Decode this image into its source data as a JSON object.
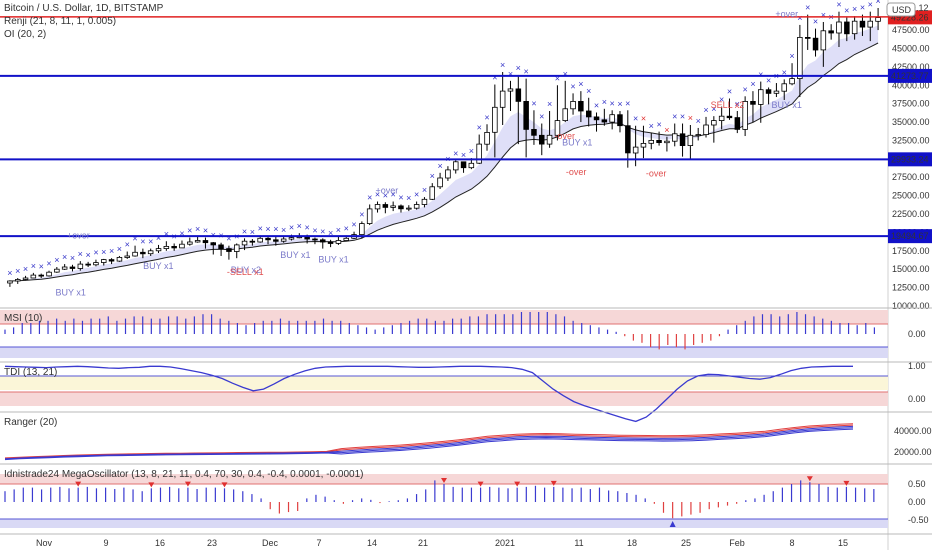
{
  "header": {
    "title": "Bitcoin / U.S. Dollar, 1D, BITSTAMP",
    "indicators": [
      "Renji (21, 8, 11, 1, 0.005)",
      "OI (20, 2)"
    ],
    "currency_button": "USD"
  },
  "chart_data": [
    {
      "id": "price",
      "type": "candlestick",
      "ylim": [
        10000,
        50500
      ],
      "y_ticks": [
        "47500.00",
        "45000.00",
        "42500.00",
        "40000.00",
        "37500.00",
        "35000.00",
        "32500.00",
        "30000.00",
        "27500.00",
        "25000.00",
        "22500.00",
        "20000.00",
        "17500.00",
        "15000.00",
        "12500.00",
        "10000.00"
      ],
      "x_ticks": [
        "Nov",
        "9",
        "16",
        "23",
        "Dec",
        "7",
        "14",
        "21",
        "2021",
        "11",
        "18",
        "25",
        "Feb",
        "8",
        "15"
      ],
      "candles_close": [
        13400,
        13600,
        13800,
        14200,
        14100,
        14600,
        15000,
        15300,
        15100,
        15700,
        15600,
        15900,
        16300,
        16100,
        16600,
        16800,
        17300,
        17100,
        17500,
        17800,
        18100,
        17900,
        18400,
        18700,
        18900,
        18600,
        18300,
        17800,
        17400,
        18300,
        18800,
        18700,
        19200,
        19000,
        18800,
        19100,
        19300,
        19400,
        19100,
        19000,
        18700,
        18500,
        18900,
        19200,
        19700,
        21200,
        23200,
        23800,
        23400,
        23600,
        23200,
        23300,
        23800,
        24500,
        26200,
        27400,
        28500,
        29600,
        28800,
        29400,
        32000,
        33600,
        37000,
        39200,
        39500,
        37800,
        34000,
        33200,
        32000,
        33200,
        35200,
        36800,
        37800,
        36500,
        35700,
        35300,
        35000,
        36000,
        34500,
        30800,
        31600,
        32100,
        32500,
        32200,
        32400,
        33400,
        31800,
        33200,
        33300,
        34600,
        35200,
        35800,
        35600,
        34000,
        37800,
        37400,
        39400,
        38900,
        39200,
        40200,
        40900,
        46500,
        46400,
        44800,
        47400,
        47100,
        48600,
        47000,
        48700,
        47900,
        48700,
        49200
      ],
      "wicks": [
        [
          12600,
          13500
        ],
        [
          13000,
          13800
        ],
        [
          13500,
          14100
        ],
        [
          13800,
          14500
        ],
        [
          13800,
          14400
        ],
        [
          14000,
          14800
        ],
        [
          14500,
          15300
        ],
        [
          14900,
          15700
        ],
        [
          14700,
          15600
        ],
        [
          14800,
          16100
        ],
        [
          15300,
          16000
        ],
        [
          15400,
          16300
        ],
        [
          15500,
          16400
        ],
        [
          15700,
          16500
        ],
        [
          16000,
          16800
        ],
        [
          16400,
          17400
        ],
        [
          16700,
          18200
        ],
        [
          16500,
          17800
        ],
        [
          16800,
          17800
        ],
        [
          17200,
          18300
        ],
        [
          17500,
          18800
        ],
        [
          17500,
          18500
        ],
        [
          18000,
          18900
        ],
        [
          18200,
          19300
        ],
        [
          18600,
          19500
        ],
        [
          17800,
          19300
        ],
        [
          17000,
          18700
        ],
        [
          16800,
          18600
        ],
        [
          16300,
          18200
        ],
        [
          16500,
          18500
        ],
        [
          17600,
          19200
        ],
        [
          18200,
          19100
        ],
        [
          18600,
          19600
        ],
        [
          18400,
          19500
        ],
        [
          18200,
          19500
        ],
        [
          18600,
          19400
        ],
        [
          18900,
          19700
        ],
        [
          19200,
          19900
        ],
        [
          18500,
          19700
        ],
        [
          18400,
          19300
        ],
        [
          17800,
          19200
        ],
        [
          18000,
          19000
        ],
        [
          18300,
          19400
        ],
        [
          18900,
          19600
        ],
        [
          19100,
          20100
        ],
        [
          19200,
          21500
        ],
        [
          21000,
          23800
        ],
        [
          22700,
          24200
        ],
        [
          22600,
          24100
        ],
        [
          22900,
          24200
        ],
        [
          22700,
          23800
        ],
        [
          22900,
          23700
        ],
        [
          23100,
          24200
        ],
        [
          23400,
          24800
        ],
        [
          24400,
          26700
        ],
        [
          25900,
          28100
        ],
        [
          27000,
          29000
        ],
        [
          28000,
          29800
        ],
        [
          28100,
          29600
        ],
        [
          28600,
          30100
        ],
        [
          29300,
          33300
        ],
        [
          31100,
          34700
        ],
        [
          30200,
          40100
        ],
        [
          34600,
          41800
        ],
        [
          36500,
          40600
        ],
        [
          32000,
          41400
        ],
        [
          30200,
          40900
        ],
        [
          31900,
          36600
        ],
        [
          30500,
          34800
        ],
        [
          31500,
          36500
        ],
        [
          32500,
          40000
        ],
        [
          35000,
          40600
        ],
        [
          36000,
          38900
        ],
        [
          35000,
          39200
        ],
        [
          34400,
          38300
        ],
        [
          33700,
          36300
        ],
        [
          34500,
          36800
        ],
        [
          34000,
          36600
        ],
        [
          33600,
          36500
        ],
        [
          28800,
          36600
        ],
        [
          29000,
          34500
        ],
        [
          30100,
          34500
        ],
        [
          31300,
          33500
        ],
        [
          31800,
          33700
        ],
        [
          31000,
          33000
        ],
        [
          31700,
          34800
        ],
        [
          30300,
          34800
        ],
        [
          30000,
          34600
        ],
        [
          32500,
          34200
        ],
        [
          32900,
          35700
        ],
        [
          32200,
          35800
        ],
        [
          34000,
          37100
        ],
        [
          35300,
          38200
        ],
        [
          33500,
          36500
        ],
        [
          33100,
          38500
        ],
        [
          35000,
          39200
        ],
        [
          34900,
          40500
        ],
        [
          37400,
          39700
        ],
        [
          38400,
          40300
        ],
        [
          38000,
          40800
        ],
        [
          40000,
          43000
        ],
        [
          38400,
          48200
        ],
        [
          44800,
          49600
        ],
        [
          43900,
          47700
        ],
        [
          42500,
          48600
        ],
        [
          46200,
          48300
        ],
        [
          45200,
          50000
        ],
        [
          46000,
          49200
        ],
        [
          46200,
          49400
        ],
        [
          46700,
          49600
        ],
        [
          46000,
          50000
        ],
        [
          47500,
          50500
        ]
      ],
      "reference_lines": [
        41273.77,
        29933.24,
        19494.67
      ],
      "price_labels": {
        "current": "49228.26",
        "high": "49289.12",
        "lines": [
          "41273.77",
          "29933.24",
          "19494.67"
        ]
      },
      "annotations": [
        {
          "text": "+over",
          "i": 16,
          "y": 19200,
          "color": "#7a79c9"
        },
        {
          "text": "BUY x1",
          "i": 13,
          "y": 11400,
          "color": "#7a79c9"
        },
        {
          "text": "BUY x1",
          "i": 36,
          "y": 15000,
          "color": "#7a79c9"
        },
        {
          "text": "BUY x2",
          "i": 59,
          "y": 14500,
          "color": "#7a79c9"
        },
        {
          "text": "-SELL x1",
          "i": 58,
          "y": 14200,
          "color": "#e05050"
        },
        {
          "text": "BUY x1",
          "i": 72,
          "y": 16500,
          "color": "#7a79c9"
        },
        {
          "text": "BUY x1",
          "i": 82,
          "y": 15900,
          "color": "#7a79c9"
        },
        {
          "text": "+over",
          "i": 97,
          "y": 25300,
          "color": "#7a79c9"
        },
        {
          "text": "-over",
          "i": 144,
          "y": 32700,
          "color": "#e05050"
        },
        {
          "text": "BUY x1",
          "i": 146,
          "y": 31800,
          "color": "#7a79c9"
        },
        {
          "text": "-over",
          "i": 147,
          "y": 27800,
          "color": "#e05050"
        },
        {
          "text": "-over",
          "i": 168,
          "y": 27600,
          "color": "#e05050"
        },
        {
          "text": "SELL x2",
          "i": 185,
          "y": 36900,
          "color": "#e05050"
        },
        {
          "text": "BUY x1",
          "i": 201,
          "y": 36900,
          "color": "#7a79c9"
        },
        {
          "text": "+over",
          "i": 202,
          "y": 49300,
          "color": "#7a79c9"
        }
      ]
    },
    {
      "id": "msi",
      "type": "histogram",
      "label": "MSI (10)",
      "y_ticks": [
        "0.00"
      ],
      "values": [
        0.2,
        0.3,
        0.5,
        0.5,
        0.6,
        0.6,
        0.7,
        0.6,
        0.7,
        0.6,
        0.7,
        0.7,
        0.8,
        0.6,
        0.7,
        0.8,
        0.8,
        0.7,
        0.7,
        0.8,
        0.8,
        0.7,
        0.8,
        0.9,
        0.9,
        0.7,
        0.6,
        0.5,
        0.4,
        0.5,
        0.6,
        0.6,
        0.7,
        0.6,
        0.6,
        0.6,
        0.6,
        0.7,
        0.6,
        0.6,
        0.5,
        0.4,
        0.3,
        0.2,
        0.3,
        0.4,
        0.5,
        0.6,
        0.7,
        0.7,
        0.6,
        0.6,
        0.7,
        0.7,
        0.8,
        0.8,
        0.9,
        0.9,
        0.9,
        0.9,
        1.0,
        1.0,
        1.0,
        1.0,
        0.9,
        0.8,
        0.6,
        0.5,
        0.4,
        0.3,
        0.2,
        0.1,
        -0.1,
        -0.3,
        -0.4,
        -0.6,
        -0.7,
        -0.5,
        -0.6,
        -0.7,
        -0.5,
        -0.4,
        -0.3,
        -0.1,
        0.2,
        0.4,
        0.6,
        0.8,
        0.9,
        0.9,
        0.8,
        0.9,
        1.0,
        0.9,
        0.8,
        0.7,
        0.6,
        0.5,
        0.5,
        0.4,
        0.5,
        0.3
      ]
    },
    {
      "id": "tdi",
      "type": "line",
      "label": "TDI (13, 21)",
      "y_ticks": [
        "1.00",
        "0.00"
      ],
      "values": [
        0.99,
        0.98,
        0.97,
        0.96,
        0.95,
        0.97,
        0.98,
        0.99,
        0.98,
        0.96,
        0.94,
        0.93,
        0.95,
        0.96,
        0.99,
        0.99,
        0.97,
        0.92,
        0.86,
        0.8,
        0.72,
        0.62,
        0.48,
        0.35,
        0.25,
        0.3,
        0.45,
        0.62,
        0.75,
        0.85,
        0.93,
        0.97,
        0.98,
        0.99,
        0.99,
        0.99,
        0.99,
        0.99,
        0.98,
        0.97,
        0.96,
        0.96,
        0.97,
        0.98,
        0.99,
        0.99,
        0.99,
        0.98,
        0.97,
        0.95,
        0.9,
        0.8,
        0.55,
        0.3,
        0.1,
        -0.08,
        -0.2,
        -0.3,
        -0.4,
        -0.5,
        -0.6,
        -0.68,
        -0.55,
        -0.3,
        0.0,
        0.3,
        0.55,
        0.7,
        0.75,
        0.74,
        0.7,
        0.66,
        0.62,
        0.6,
        0.65,
        0.75,
        0.86,
        0.93,
        0.97,
        0.98,
        0.99,
        0.99,
        0.99
      ]
    },
    {
      "id": "ranger",
      "type": "line",
      "label": "Ranger (20)",
      "y_ticks": [
        "40000.00",
        "20000.00"
      ],
      "series_center": [
        13500,
        14200,
        14800,
        15300,
        15900,
        16300,
        16700,
        17100,
        17300,
        17500,
        17800,
        18000,
        18100,
        18300,
        18400,
        18500,
        18700,
        18800,
        18900,
        19000,
        19200,
        19400,
        19800,
        20700,
        21700,
        22600,
        23300,
        24000,
        25100,
        26300,
        27600,
        29000,
        30800,
        32500,
        33500,
        34500,
        35000,
        35200,
        35000,
        34500,
        34200,
        33900,
        33600,
        33400,
        33300,
        33100,
        33200,
        33500,
        34000,
        34800,
        35500,
        36300,
        37400,
        39200,
        41000,
        42400,
        43300,
        44000,
        44600
      ]
    },
    {
      "id": "mega",
      "type": "histogram",
      "label": "Idnistrade24 MegaOscillator (13, 8, 21, 11, 0.4, 70, 30, 0.4, -0.4, 0.0001, -0.0001)",
      "y_ticks": [
        "0.50",
        "0.00",
        "-0.50"
      ],
      "values": [
        0.3,
        0.35,
        0.4,
        0.4,
        0.35,
        0.4,
        0.42,
        0.38,
        0.4,
        0.42,
        0.38,
        0.4,
        0.36,
        0.4,
        0.35,
        0.3,
        0.38,
        0.4,
        0.42,
        0.38,
        0.4,
        0.36,
        0.4,
        0.4,
        0.38,
        0.35,
        0.3,
        0.22,
        0.1,
        -0.2,
        -0.32,
        -0.28,
        -0.25,
        0.1,
        0.2,
        0.15,
        0.05,
        -0.05,
        0.05,
        0.1,
        0.06,
        -0.03,
        0.02,
        0.05,
        0.1,
        0.22,
        0.35,
        0.6,
        0.5,
        0.42,
        0.4,
        0.4,
        0.4,
        0.42,
        0.4,
        0.38,
        0.4,
        0.42,
        0.45,
        0.4,
        0.42,
        0.4,
        0.38,
        0.4,
        0.36,
        0.4,
        0.32,
        0.3,
        0.25,
        0.2,
        0.1,
        -0.05,
        -0.3,
        -0.45,
        -0.4,
        -0.35,
        -0.3,
        -0.2,
        -0.15,
        -0.1,
        -0.05,
        0.05,
        0.1,
        0.2,
        0.3,
        0.4,
        0.5,
        0.6,
        0.55,
        0.5,
        0.42,
        0.4,
        0.42,
        0.4,
        0.38,
        0.36
      ]
    }
  ]
}
